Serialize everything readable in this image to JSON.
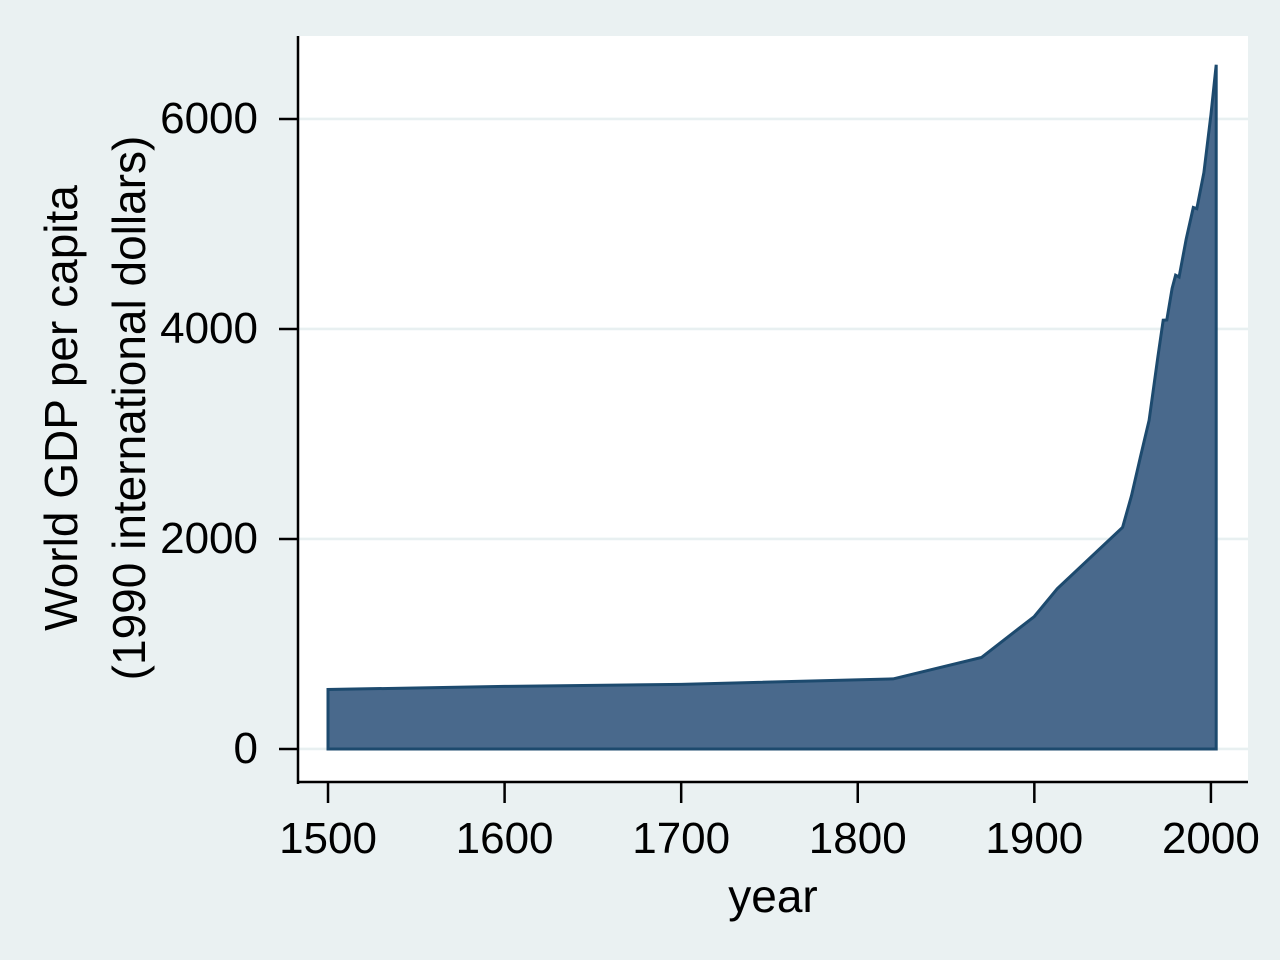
{
  "figure": {
    "background_color": "#eaf1f2",
    "plot_background_color": "#ffffff",
    "grid_color": "#e8f0f1",
    "axis_color": "#000000",
    "area_fill_color": "#49698c",
    "area_stroke_color": "#1d4a6e"
  },
  "chart_data": {
    "type": "area",
    "title": "",
    "xlabel": "year",
    "ylabel_lines": [
      "World GDP per capita",
      "(1990 international dollars)"
    ],
    "legend": "none",
    "grid": "horizontal",
    "x_ticks": [
      1500,
      1600,
      1700,
      1800,
      1900,
      2000
    ],
    "y_ticks": [
      0,
      2000,
      4000,
      6000
    ],
    "xlim": [
      1483,
      2021
    ],
    "ylim": [
      -324,
      6790
    ],
    "series": [
      {
        "name": "World GDP per capita (1990 international dollars)",
        "baseline": 0,
        "x": [
          1500,
          1600,
          1700,
          1820,
          1870,
          1900,
          1913,
          1950,
          1955,
          1960,
          1965,
          1970,
          1973,
          1975,
          1978,
          1980,
          1982,
          1986,
          1990,
          1992,
          1996,
          2000,
          2003
        ],
        "y": [
          566,
          596,
          615,
          667,
          871,
          1262,
          1526,
          2111,
          2412,
          2777,
          3130,
          3736,
          4083,
          4085,
          4385,
          4512,
          4495,
          4857,
          5157,
          5145,
          5490,
          6038,
          6516
        ]
      }
    ]
  }
}
